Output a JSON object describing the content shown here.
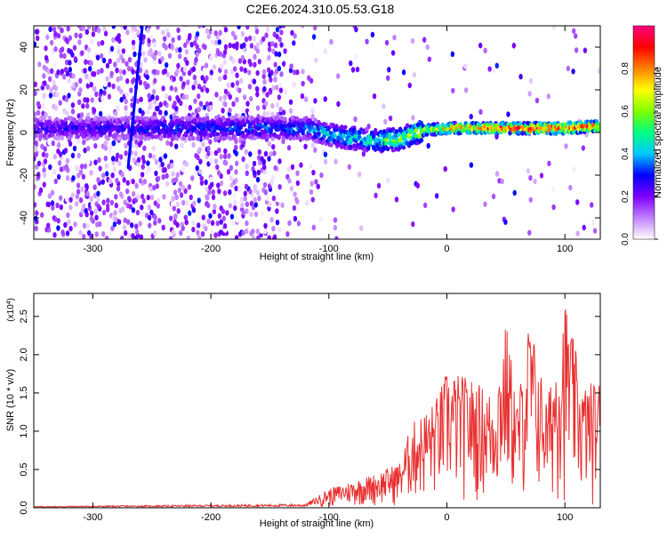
{
  "title": "C2E6.2024.310.05.53.G18",
  "chart_data": [
    {
      "type": "heatmap",
      "xlabel": "Height of straight line (km)",
      "ylabel": "Frequency (Hz)",
      "xlim": [
        -350,
        130
      ],
      "ylim": [
        -50,
        50
      ],
      "xticks": [
        -300,
        -200,
        -100,
        0,
        100
      ],
      "yticks": [
        -40,
        -20,
        0,
        20,
        40
      ],
      "colorbar": {
        "label": "Normalized spectral amplitude",
        "range": [
          0,
          1
        ],
        "ticks": [
          "0.0",
          "0.2",
          "0.4",
          "0.6",
          "0.8"
        ],
        "colors": [
          "#ffffff",
          "#c080ff",
          "#7f00ff",
          "#0000ff",
          "#00c8ff",
          "#00ff80",
          "#80ff00",
          "#ffff00",
          "#ff8000",
          "#ff0000",
          "#ff0080"
        ]
      },
      "ridge": {
        "description_points": [
          {
            "x": -350,
            "y": 2,
            "amp": 0.25
          },
          {
            "x": -120,
            "y": 2,
            "amp": 0.35
          },
          {
            "x": -90,
            "y": -2,
            "amp": 0.45
          },
          {
            "x": -60,
            "y": -4,
            "amp": 0.5
          },
          {
            "x": -40,
            "y": -3,
            "amp": 0.55
          },
          {
            "x": -20,
            "y": 1,
            "amp": 0.65
          },
          {
            "x": 0,
            "y": 2,
            "amp": 0.7
          },
          {
            "x": 40,
            "y": 2,
            "amp": 0.85
          },
          {
            "x": 100,
            "y": 2,
            "amp": 0.9
          },
          {
            "x": 130,
            "y": 3,
            "amp": 0.8
          }
        ]
      }
    },
    {
      "type": "line",
      "xlabel": "Height of straight line (km)",
      "ylabel": "SNR (10 * v/v)",
      "yscale_label": "(x10^4)",
      "xlim": [
        -350,
        130
      ],
      "ylim": [
        0,
        2.8
      ],
      "xticks": [
        -300,
        -200,
        -100,
        0,
        100
      ],
      "yticks": [
        "0.0",
        "0.5",
        "1.0",
        "1.5",
        "2.0",
        "2.5"
      ],
      "series": [
        {
          "color": "#e83030",
          "envelope": [
            {
              "x": -350,
              "y": 0.02
            },
            {
              "x": -120,
              "y": 0.05
            },
            {
              "x": -100,
              "y": 0.25
            },
            {
              "x": -80,
              "y": 0.35
            },
            {
              "x": -60,
              "y": 0.45
            },
            {
              "x": -40,
              "y": 0.6
            },
            {
              "x": -30,
              "y": 1.1
            },
            {
              "x": -10,
              "y": 1.4
            },
            {
              "x": 0,
              "y": 1.8
            },
            {
              "x": 20,
              "y": 1.7
            },
            {
              "x": 40,
              "y": 1.5
            },
            {
              "x": 50,
              "y": 2.45
            },
            {
              "x": 60,
              "y": 1.4
            },
            {
              "x": 70,
              "y": 2.5
            },
            {
              "x": 85,
              "y": 1.4
            },
            {
              "x": 100,
              "y": 2.75
            },
            {
              "x": 115,
              "y": 1.6
            },
            {
              "x": 130,
              "y": 1.7
            }
          ]
        }
      ]
    }
  ]
}
